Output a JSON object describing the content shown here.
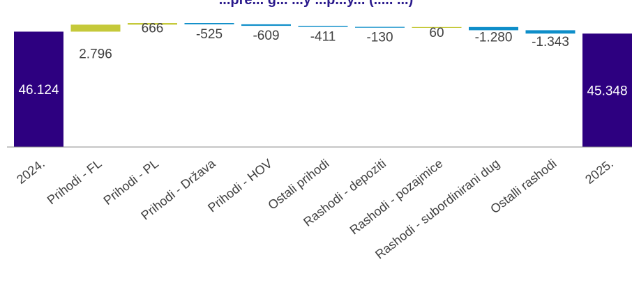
{
  "chart_data": {
    "type": "bar",
    "subtype": "waterfall",
    "title": "...pre... g... ...y ...p...y... (..... ...)",
    "categories": [
      "2024.",
      "Prihodi - FL",
      "Prihodi - PL",
      "Prihodi - Država",
      "Prihodi - HOV",
      "Ostali prihodi",
      "Rashodi - depoziti",
      "Rashodi - pozajmice",
      "Rashodi - subordinirani dug",
      "Ostalli rashodi",
      "2025."
    ],
    "values": [
      46124,
      2796,
      666,
      -525,
      -609,
      -411,
      -130,
      60,
      -1280,
      -1343,
      45348
    ],
    "value_labels": [
      "46.124",
      "2.796",
      "666",
      "-525",
      "-609",
      "-411",
      "-130",
      "60",
      "-1.280",
      "-1.343",
      "45.348"
    ],
    "kinds": [
      "total",
      "delta",
      "delta",
      "delta",
      "delta",
      "delta",
      "delta",
      "delta",
      "delta",
      "delta",
      "total"
    ],
    "ylim": [
      0,
      49586
    ],
    "xlabel": "",
    "ylabel": "",
    "grid": false,
    "legend": "none",
    "colors": {
      "total": "#2d0080",
      "increase": "#c5c93a",
      "decrease": "#0e8ec9",
      "axis": "#8c8c8c",
      "title": "#2a1a8c"
    }
  }
}
